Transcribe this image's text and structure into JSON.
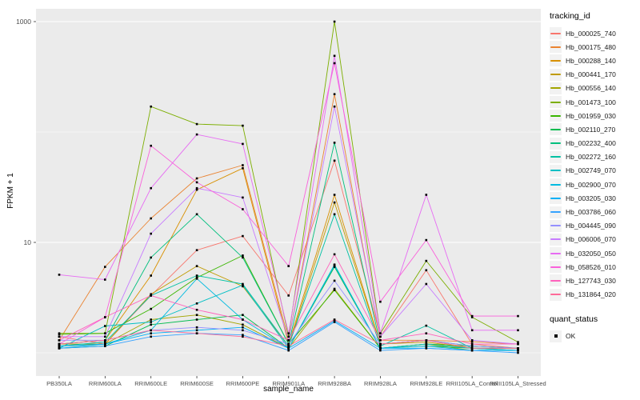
{
  "chart_data": {
    "type": "line",
    "title": "",
    "xlabel": "sample_name",
    "ylabel": "FPKM + 1",
    "y_scale": "log10",
    "ylim_log10": [
      -0.21,
      3.12
    ],
    "grid": "on",
    "panel_bg": "#EBEBEB",
    "grid_color": "#FFFFFF",
    "axis_text_color": "#4D4D4D",
    "tick_color": "#333333",
    "point_color": "#000000",
    "point_shape": "square",
    "legend_position": "right",
    "legend_title": "tracking_id",
    "legend2_title": "quant_status",
    "legend2_items": [
      {
        "label": "OK",
        "marker": "black-square"
      }
    ],
    "y_ticks": [
      {
        "label": "1000",
        "value": 1000
      },
      {
        "label": "10",
        "value": 10
      }
    ],
    "minor_grid_values": [
      1,
      100
    ],
    "major_grid_values": [
      10,
      1000
    ],
    "categories": [
      "PB350LA",
      "RRIM600LA",
      "RRIM600LE",
      "RRIM600SE",
      "RRIM600PE",
      "RRIM901LA",
      "RRIM928BA",
      "RRIM928LA",
      "RRIM928LE",
      "RRII105LA_Control",
      "RRII105LA_Stressed"
    ],
    "values_note": "FPKM+1, approximate values read from log-scale plot",
    "series": [
      {
        "name": "Hb_000025_740",
        "color": "#F8766D",
        "values": [
          1.4,
          1.2,
          3.3,
          8.5,
          11.4,
          3.3,
          55,
          1.4,
          5.6,
          1.2,
          1.1
        ]
      },
      {
        "name": "Hb_000175_480",
        "color": "#EA8331",
        "values": [
          1.3,
          6.0,
          16.5,
          38,
          50,
          1.3,
          220,
          1.3,
          1.3,
          1.26,
          1.2
        ]
      },
      {
        "name": "Hb_000288_140",
        "color": "#D89000",
        "values": [
          1.2,
          1.3,
          5.0,
          30,
          47,
          1.2,
          27,
          1.2,
          1.3,
          1.1,
          1.1
        ]
      },
      {
        "name": "Hb_000441_170",
        "color": "#C09B00",
        "values": [
          1.2,
          1.2,
          3.4,
          6.1,
          4.0,
          1.15,
          23,
          1.2,
          1.25,
          1.1,
          1.1
        ]
      },
      {
        "name": "Hb_000556_140",
        "color": "#A3A500",
        "values": [
          1.15,
          1.2,
          2.0,
          2.2,
          1.8,
          1.1,
          3.8,
          1.1,
          1.2,
          1.05,
          1.05
        ]
      },
      {
        "name": "Hb_001473_100",
        "color": "#7CAE00",
        "values": [
          1.5,
          1.5,
          170,
          118,
          114,
          1.4,
          1000,
          1.5,
          6.8,
          2.1,
          1.25
        ]
      },
      {
        "name": "Hb_001959_030",
        "color": "#39B600",
        "values": [
          1.47,
          1.5,
          2.5,
          4.8,
          7.6,
          1.2,
          3.7,
          1.1,
          1.2,
          1.15,
          1.1
        ]
      },
      {
        "name": "Hb_002110_270",
        "color": "#00BB4E",
        "values": [
          1.1,
          1.15,
          1.8,
          2.0,
          2.2,
          1.1,
          6.0,
          1.1,
          1.15,
          1.1,
          1.05
        ]
      },
      {
        "name": "Hb_002232_400",
        "color": "#00BF7D",
        "values": [
          1.2,
          1.3,
          7.3,
          18,
          7.3,
          1.2,
          80,
          1.2,
          1.3,
          1.15,
          1.1
        ]
      },
      {
        "name": "Hb_002272_160",
        "color": "#00C1A3",
        "values": [
          1.15,
          1.25,
          3.3,
          5.0,
          4.2,
          1.15,
          18,
          1.15,
          1.76,
          1.1,
          1.1
        ]
      },
      {
        "name": "Hb_002749_070",
        "color": "#00BFC4",
        "values": [
          1.1,
          1.75,
          1.9,
          2.8,
          4.1,
          1.1,
          6.3,
          1.1,
          1.2,
          1.1,
          1.05
        ]
      },
      {
        "name": "Hb_002900_070",
        "color": "#00BAE0",
        "values": [
          1.1,
          1.2,
          1.6,
          4.7,
          2.0,
          1.1,
          6.2,
          1.1,
          1.15,
          1.05,
          1.05
        ]
      },
      {
        "name": "Hb_003205_030",
        "color": "#00B0F6",
        "values": [
          1.15,
          1.2,
          1.5,
          1.6,
          1.7,
          1.1,
          1.95,
          1.1,
          1.1,
          1.05,
          1.05
        ]
      },
      {
        "name": "Hb_003786_060",
        "color": "#35A2FF",
        "values": [
          1.1,
          1.15,
          1.4,
          1.5,
          1.45,
          1.05,
          1.9,
          1.05,
          1.1,
          1.05,
          1.0
        ]
      },
      {
        "name": "Hb_004445_090",
        "color": "#9590FF",
        "values": [
          1.3,
          1.3,
          1.6,
          1.7,
          1.6,
          1.2,
          4.5,
          1.2,
          1.3,
          1.15,
          1.1
        ]
      },
      {
        "name": "Hb_006006_070",
        "color": "#C77CFF",
        "values": [
          1.4,
          1.4,
          12,
          31,
          25.5,
          1.3,
          170,
          1.4,
          4.2,
          1.3,
          1.2
        ]
      },
      {
        "name": "Hb_032050_050",
        "color": "#E76BF3",
        "values": [
          5.1,
          4.6,
          31,
          95,
          78,
          1.5,
          490,
          1.5,
          27,
          1.6,
          1.6
        ]
      },
      {
        "name": "Hb_058526_010",
        "color": "#FA62DB",
        "values": [
          1.2,
          2.1,
          75,
          35,
          20,
          6.1,
          420,
          2.9,
          10.5,
          2.15,
          2.15
        ]
      },
      {
        "name": "Hb_127743_030",
        "color": "#FF62BC",
        "values": [
          1.3,
          2.1,
          3.3,
          2.45,
          2.0,
          1.3,
          7.8,
          1.3,
          1.5,
          1.2,
          1.2
        ]
      },
      {
        "name": "Hb_131864_020",
        "color": "#FF6A98",
        "values": [
          1.2,
          1.3,
          1.6,
          1.5,
          1.4,
          1.15,
          2.0,
          1.2,
          1.3,
          1.1,
          1.1
        ]
      }
    ]
  }
}
